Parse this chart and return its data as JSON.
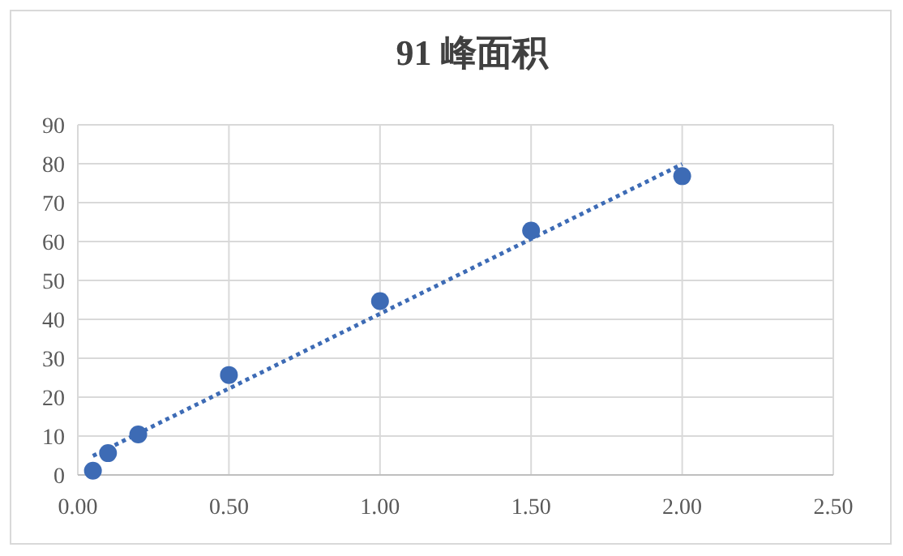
{
  "chart_data": {
    "type": "scatter",
    "title": "91 峰面积",
    "x": [
      0.05,
      0.1,
      0.2,
      0.5,
      1.0,
      1.5,
      2.0
    ],
    "series": [
      {
        "color": "#3d6bb5",
        "marker": "circle",
        "values": [
          1.1,
          5.6,
          10.4,
          25.7,
          44.7,
          62.8,
          76.8
        ]
      },
      {
        "type": "line",
        "color": "#3d6bb5",
        "line_style": "dotted",
        "marker": "none",
        "x": [
          0.05,
          2.0
        ],
        "values": [
          4.9,
          79.9
        ]
      }
    ],
    "xlim": [
      0,
      2.5
    ],
    "xticks": [
      {
        "value": 0,
        "label": "0.00"
      },
      {
        "value": 0.5,
        "label": "0.50"
      },
      {
        "value": 1,
        "label": "1.00"
      },
      {
        "value": 1.5,
        "label": "1.50"
      },
      {
        "value": 2,
        "label": "2.00"
      },
      {
        "value": 2.5,
        "label": "2.50"
      }
    ],
    "ylim": [
      0,
      90
    ],
    "yticks": [
      0,
      10,
      20,
      30,
      40,
      50,
      60,
      70,
      80,
      90
    ],
    "grid": true
  }
}
